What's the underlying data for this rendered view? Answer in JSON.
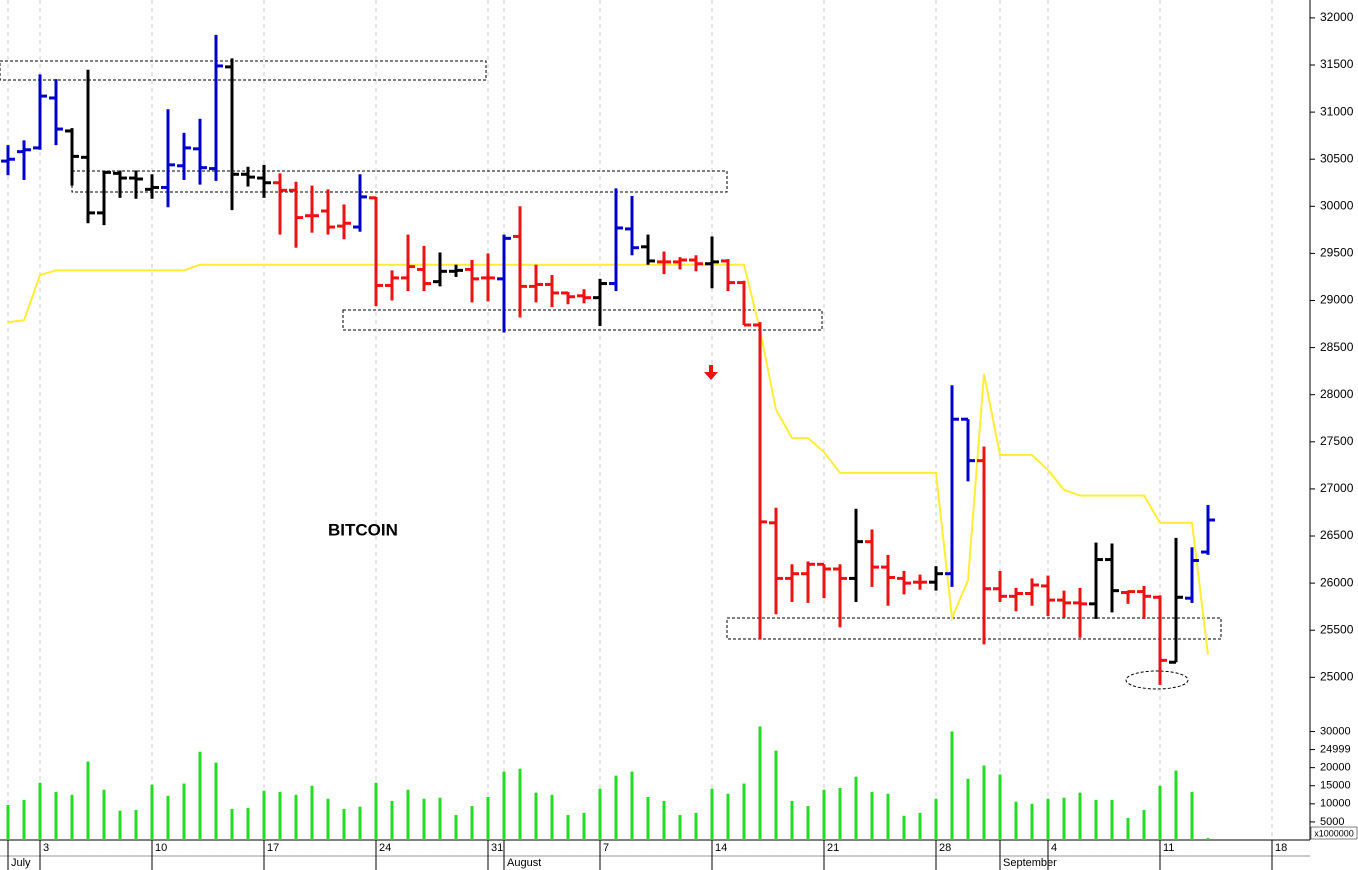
{
  "chart_data": [
    {
      "type": "ohlc",
      "label": "BITCOIN",
      "categories": [
        "July",
        null,
        "3",
        null,
        null,
        null,
        null,
        null,
        null,
        "10",
        null,
        null,
        null,
        null,
        null,
        null,
        "17",
        null,
        null,
        null,
        null,
        null,
        null,
        "24",
        null,
        null,
        null,
        null,
        null,
        null,
        "31",
        "August",
        null,
        null,
        null,
        null,
        null,
        "7",
        null,
        null,
        null,
        null,
        null,
        null,
        "14",
        null,
        null,
        null,
        null,
        null,
        null,
        "21",
        null,
        null,
        null,
        null,
        null,
        null,
        "28",
        null,
        null,
        null,
        "September",
        null,
        null,
        "4",
        null,
        null,
        null,
        null,
        null,
        null,
        "11",
        null,
        null,
        null,
        null,
        null,
        null,
        "18"
      ],
      "open": [
        30480,
        30580,
        30620,
        31150,
        30800,
        30520,
        29930,
        30350,
        30300,
        30180,
        30200,
        30430,
        30610,
        30400,
        31480,
        30340,
        30300,
        30250,
        30170,
        29900,
        29950,
        29790,
        29780,
        30090,
        29160,
        29240,
        29330,
        29200,
        29310,
        29330,
        29240,
        29230,
        29680,
        29150,
        29170,
        29080,
        29050,
        29030,
        29180,
        29760,
        29570,
        29410,
        29410,
        29430,
        29390,
        29420,
        29190,
        28740,
        26640,
        26050,
        26100,
        26200,
        26150,
        26050,
        26440,
        26170,
        26050,
        26010,
        26010,
        26100,
        27740,
        27300,
        25940,
        25860,
        25890,
        25970,
        25820,
        25790,
        25780,
        26250,
        25900,
        25910,
        25850,
        25160,
        25840,
        26330,
        null,
        null,
        null,
        null
      ],
      "high": [
        30650,
        30700,
        31400,
        31350,
        30830,
        31450,
        30380,
        30380,
        30380,
        30340,
        31030,
        30780,
        30930,
        31820,
        31570,
        30420,
        30440,
        30350,
        30260,
        30220,
        30180,
        30020,
        30340,
        30100,
        29320,
        29700,
        29580,
        29510,
        29380,
        29430,
        29500,
        29700,
        30000,
        29380,
        29270,
        29090,
        29120,
        29230,
        30190,
        30110,
        29700,
        29520,
        29460,
        29480,
        29680,
        29440,
        29210,
        28770,
        26800,
        26200,
        26230,
        26200,
        26200,
        26790,
        26570,
        26300,
        26130,
        26090,
        26180,
        28100,
        27740,
        27450,
        26130,
        25950,
        26050,
        26080,
        25920,
        25950,
        26430,
        26420,
        25920,
        25970,
        25870,
        26480,
        26380,
        26830,
        null,
        null,
        null,
        null
      ],
      "low": [
        30330,
        30280,
        30600,
        30650,
        30220,
        29820,
        29800,
        30090,
        30080,
        30080,
        29990,
        30280,
        30230,
        30270,
        29960,
        30210,
        30090,
        29700,
        29560,
        29720,
        29700,
        29650,
        29730,
        28940,
        29000,
        29100,
        29100,
        29150,
        29250,
        28980,
        28990,
        28660,
        28820,
        28980,
        28930,
        28960,
        28970,
        28730,
        29100,
        29480,
        29380,
        29280,
        29330,
        29310,
        29130,
        29100,
        28740,
        25400,
        25670,
        25800,
        25790,
        25840,
        25530,
        25800,
        25960,
        25760,
        25880,
        25930,
        25920,
        25960,
        27080,
        25350,
        25800,
        25700,
        25760,
        25650,
        25630,
        25420,
        25620,
        25690,
        25780,
        25620,
        24920,
        25160,
        25790,
        26300,
        null,
        null,
        null,
        null
      ],
      "close": [
        30500,
        30600,
        31170,
        30820,
        30530,
        29930,
        30360,
        30300,
        30290,
        30200,
        30440,
        30620,
        30410,
        31490,
        30340,
        30310,
        30250,
        30170,
        29880,
        29900,
        29780,
        29820,
        30100,
        29160,
        29240,
        29360,
        29180,
        29310,
        29320,
        29230,
        29240,
        29660,
        29150,
        29170,
        29080,
        29040,
        29030,
        29180,
        29770,
        29560,
        29420,
        29410,
        29430,
        29390,
        29410,
        29190,
        28740,
        26650,
        26050,
        26100,
        26200,
        26150,
        26050,
        26440,
        26170,
        26060,
        26000,
        26010,
        26100,
        27740,
        27300,
        25940,
        25860,
        25890,
        25980,
        25820,
        25790,
        25780,
        26250,
        25920,
        25910,
        25860,
        25180,
        25850,
        26240,
        26670,
        null,
        null,
        null,
        null
      ],
      "bar_colors": [
        "#0000cc",
        "#0000cc",
        "#0000cc",
        "#0000cc",
        "#000000",
        "#000000",
        "#000000",
        "#000000",
        "#000000",
        "#000000",
        "#0000cc",
        "#0000cc",
        "#0000cc",
        "#0000cc",
        "#000000",
        "#000000",
        "#000000",
        "#ee1111",
        "#ee1111",
        "#ee1111",
        "#ee1111",
        "#ee1111",
        "#0000cc",
        "#ee1111",
        "#ee1111",
        "#ee1111",
        "#ee1111",
        "#000000",
        "#000000",
        "#ee1111",
        "#ee1111",
        "#0000cc",
        "#ee1111",
        "#ee1111",
        "#ee1111",
        "#ee1111",
        "#ee1111",
        "#000000",
        "#0000cc",
        "#0000cc",
        "#000000",
        "#ee1111",
        "#ee1111",
        "#ee1111",
        "#000000",
        "#ee1111",
        "#ee1111",
        "#ee1111",
        "#ee1111",
        "#ee1111",
        "#ee1111",
        "#ee1111",
        "#ee1111",
        "#000000",
        "#ee1111",
        "#ee1111",
        "#ee1111",
        "#ee1111",
        "#000000",
        "#0000cc",
        "#0000cc",
        "#ee1111",
        "#ee1111",
        "#ee1111",
        "#ee1111",
        "#ee1111",
        "#ee1111",
        "#ee1111",
        "#000000",
        "#000000",
        "#ee1111",
        "#ee1111",
        "#ee1111",
        "#000000",
        "#0000cc",
        "#0000cc",
        null,
        null,
        null,
        null
      ],
      "overlay": {
        "type": "line",
        "color": "#ffee33",
        "values": [
          28770,
          28790,
          29270,
          29320,
          29320,
          29320,
          29320,
          29320,
          29320,
          29320,
          29320,
          29320,
          29380,
          29380,
          29380,
          29380,
          29380,
          29380,
          29380,
          29380,
          29380,
          29380,
          29380,
          29380,
          29380,
          29380,
          29380,
          29380,
          29380,
          29380,
          29380,
          29380,
          29380,
          29380,
          29380,
          29380,
          29380,
          29380,
          29380,
          29380,
          29380,
          29380,
          29380,
          29380,
          29380,
          29380,
          29380,
          28690,
          27840,
          27540,
          27540,
          27390,
          27170,
          27170,
          27170,
          27170,
          27170,
          27170,
          27170,
          25630,
          26030,
          28220,
          27360,
          27360,
          27360,
          27200,
          26990,
          26930,
          26930,
          26930,
          26930,
          26930,
          26640,
          26640,
          26640,
          25240,
          null,
          null,
          null,
          null
        ]
      },
      "ylim": [
        24600,
        32190
      ],
      "yticks": [
        25000,
        25500,
        26000,
        26500,
        27000,
        27500,
        28000,
        28500,
        29000,
        29500,
        30000,
        30500,
        31000,
        31500,
        32000
      ]
    },
    {
      "type": "bar",
      "color": "#22dd22",
      "unit_label": "x1000000",
      "values": [
        9700,
        11100,
        15800,
        13300,
        12500,
        21700,
        13900,
        8100,
        8300,
        15300,
        12200,
        15600,
        24400,
        21400,
        8600,
        8900,
        13600,
        13300,
        12500,
        15000,
        11400,
        8600,
        9200,
        15800,
        10800,
        13900,
        11400,
        11700,
        6900,
        9400,
        11900,
        18900,
        19700,
        13100,
        12500,
        6900,
        7500,
        14200,
        17800,
        18900,
        11900,
        10800,
        6900,
        7500,
        14200,
        12800,
        15600,
        31400,
        24700,
        10800,
        9400,
        13900,
        14400,
        17500,
        13300,
        12800,
        6700,
        7500,
        11400,
        30000,
        16900,
        20600,
        18100,
        10600,
        10000,
        11400,
        11700,
        13100,
        11100,
        11100,
        6100,
        8300,
        15000,
        19200,
        13300,
        560,
        null,
        null,
        null,
        null
      ],
      "ylim": [
        0,
        34000
      ],
      "yticks": [
        5000,
        10000,
        15000,
        20000,
        24999,
        30000
      ]
    }
  ]
}
